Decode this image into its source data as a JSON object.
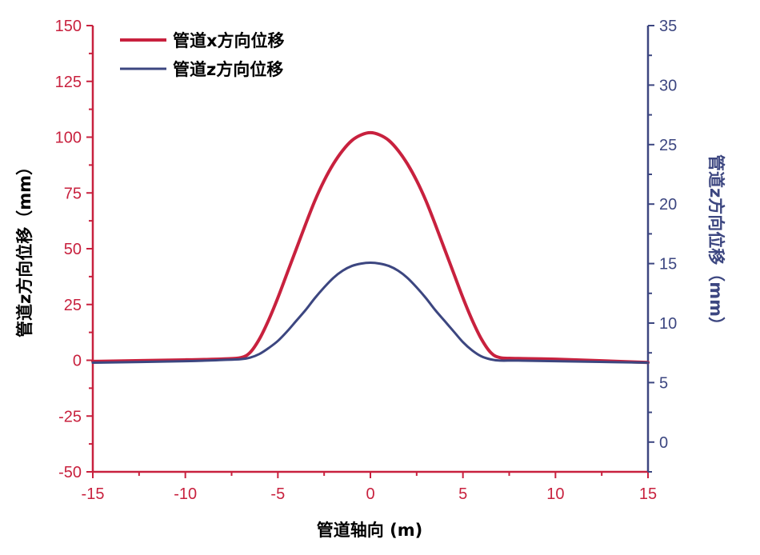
{
  "chart_data": {
    "type": "line",
    "title": "",
    "xlabel": "管道轴向 (m)",
    "ylabel_left": "管道z方向位移（mm）",
    "ylabel_right": "管道z方向位移（mm）",
    "xlim": [
      -15,
      15
    ],
    "ylim_left": [
      -50,
      150
    ],
    "ylim_right": [
      -2.5,
      35
    ],
    "xticks": [
      -15,
      -10,
      -5,
      0,
      5,
      10,
      15
    ],
    "yticks_left": [
      -50,
      -25,
      0,
      25,
      50,
      75,
      100,
      125,
      150
    ],
    "yticks_right": [
      0,
      5,
      10,
      15,
      20,
      25,
      30,
      35
    ],
    "grid": false,
    "legend_position": "top-left",
    "colors": {
      "left_axis": "#c8213e",
      "right_axis": "#3c4680"
    },
    "x": [
      -15,
      -10,
      -8,
      -7,
      -6.5,
      -6,
      -5.5,
      -5,
      -4.5,
      -4,
      -3.5,
      -3,
      -2.5,
      -2,
      -1.5,
      -1,
      -0.5,
      0,
      0.5,
      1,
      1.5,
      2,
      2.5,
      3,
      3.5,
      4,
      4.5,
      5,
      5.5,
      6,
      6.5,
      7,
      8,
      10,
      15
    ],
    "series": [
      {
        "name": "管道x方向位移",
        "axis": "left",
        "color": "#c8213e",
        "values": [
          -0.5,
          0.2,
          0.6,
          1.2,
          3.5,
          9.5,
          18,
          28,
          39,
          50,
          61,
          71.5,
          80.5,
          88,
          94,
          98.5,
          101,
          102,
          101,
          98.5,
          94,
          88,
          80.5,
          71.5,
          61,
          50,
          39,
          28,
          18,
          9.5,
          3.5,
          1.2,
          0.8,
          0.5,
          -1
        ]
      },
      {
        "name": "管道z方向位移",
        "axis": "right",
        "color": "#3c4680",
        "values": [
          6.67,
          6.8,
          6.9,
          6.97,
          7.1,
          7.4,
          7.9,
          8.5,
          9.3,
          10.2,
          11.1,
          12.1,
          13.0,
          13.8,
          14.4,
          14.8,
          15.0,
          15.07,
          15.0,
          14.8,
          14.4,
          13.8,
          13.0,
          12.1,
          11.1,
          10.2,
          9.3,
          8.4,
          7.7,
          7.2,
          6.95,
          6.85,
          6.85,
          6.8,
          6.67
        ]
      }
    ]
  }
}
